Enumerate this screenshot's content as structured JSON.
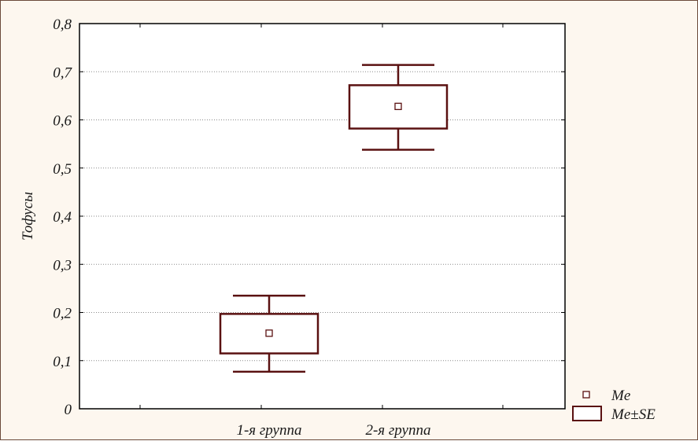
{
  "chart_data": {
    "type": "box",
    "ylabel": "Тофусы",
    "ylim": [
      0,
      0.8
    ],
    "yticks": [
      "0",
      "0,1",
      "0,2",
      "0,3",
      "0,4",
      "0,5",
      "0,6",
      "0,7",
      "0,8"
    ],
    "categories": [
      "1-я группа",
      "2-я группа"
    ],
    "groups": [
      {
        "category": "1-я группа",
        "median": 0.157,
        "box_low": 0.115,
        "box_high": 0.197,
        "whisker_low": 0.077,
        "whisker_high": 0.235
      },
      {
        "category": "2-я группа",
        "median": 0.628,
        "box_low": 0.582,
        "box_high": 0.672,
        "whisker_low": 0.538,
        "whisker_high": 0.714
      }
    ],
    "legend": [
      {
        "symbol": "small-square",
        "label": "Me"
      },
      {
        "symbol": "box",
        "label": "Me±SE"
      }
    ],
    "legend_position": "bottom-right",
    "grid": "horizontal-dotted",
    "colors": {
      "box": "#5a1111",
      "frame_bg": "#fdf7ef",
      "plot_bg": "#ffffff",
      "grid": "#8a8a8a"
    }
  }
}
